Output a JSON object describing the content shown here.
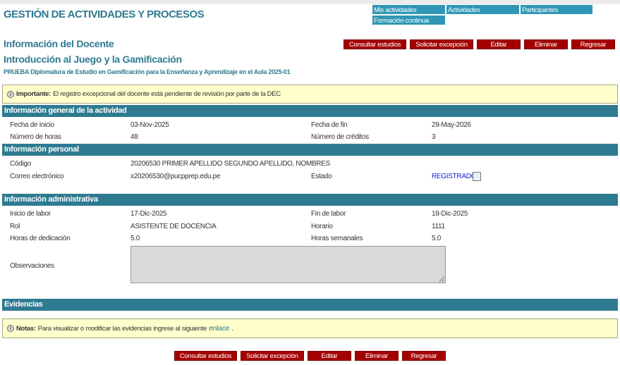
{
  "app_title": "GESTIÓN DE ACTIVIDADES Y PROCESOS",
  "nav": [
    "Mis actividades",
    "Actividades",
    "Participantes",
    "Formación continua"
  ],
  "page_title": "Información del Docente",
  "activity_title": "Introducción al Juego y la Gamificación",
  "program": "PRUEBA Diplomatura de Estudio en Gamificación para la Enseñanza y Aprendizaje en el Aula 2025-01",
  "buttons": [
    "Consultar estudios",
    "Solicitar excepción",
    "Editar",
    "Eliminar",
    "Regresar"
  ],
  "important": {
    "label": "Importante:",
    "text": "El registro excepcional del docente está pendiente de revisión por parte de la DEC"
  },
  "general": {
    "title": "Información general de la actividad",
    "fecha_inicio_l": "Fecha de inicio",
    "fecha_inicio": "03-Nov-2025",
    "fecha_fin_l": "Fecha de fin",
    "fecha_fin": "29-May-2026",
    "horas_l": "Número de horas",
    "horas": "48",
    "creditos_l": "Número de créditos",
    "creditos": "3"
  },
  "personal": {
    "title": "Información personal",
    "codigo_l": "Código",
    "codigo": "20206530 PRIMER APELLIDO SEGUNDO APELLIDO, NOMBRES",
    "correo_l": "Correo electrónico",
    "correo": "x20206530@pucpprep.edu.pe",
    "estado_l": "Estado",
    "estado": "REGISTRADO"
  },
  "admin": {
    "title": "Información administrativa",
    "inicio_l": "Inicio de labor",
    "inicio": "17-Dic-2025",
    "fin_l": "Fin de labor",
    "fin": "18-Dic-2025",
    "rol_l": "Rol",
    "rol": "ASISTENTE DE DOCENCIA",
    "horario_l": "Horario",
    "horario": "1111",
    "dedic_l": "Horas de dedicación",
    "dedic": "5.0",
    "semanales_l": "Horas semanales",
    "semanales": "5.0",
    "obs_l": "Observaciones",
    "obs": ""
  },
  "evidencias": {
    "title": "Evidencias"
  },
  "notas": {
    "label": "Notas:",
    "text": "Para visualizar o modificar las evidencias ingrese al siguiente",
    "link": "enlace"
  }
}
